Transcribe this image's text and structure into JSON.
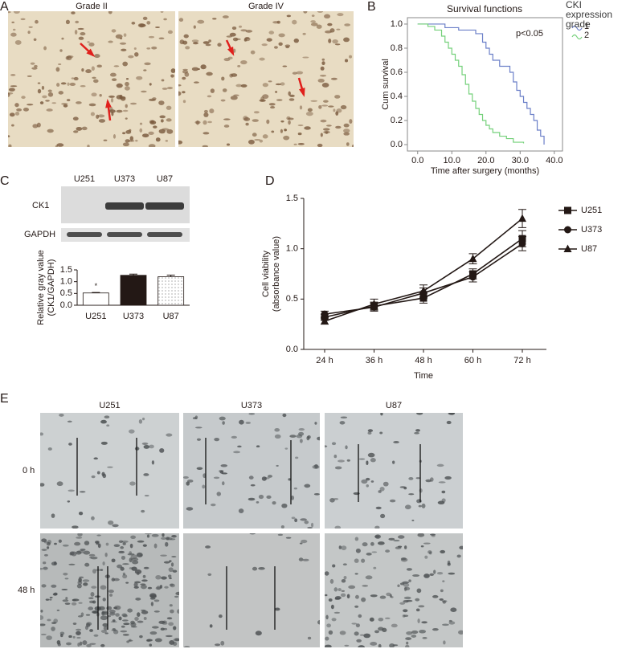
{
  "figure": {
    "A": {
      "letter": "A",
      "labels": [
        "Grade II",
        "Grade IV"
      ]
    },
    "blot": {
      "lanes": [
        "U251",
        "U373",
        "U87"
      ],
      "rows": [
        "CK1",
        "GAPDH"
      ]
    },
    "E": {
      "letter": "E",
      "columns": [
        "U251",
        "U373",
        "U87"
      ],
      "rows": [
        "0 h",
        "48 h"
      ]
    }
  },
  "chart_data": [
    {
      "type": "step",
      "panel": "B",
      "title": "Survival functions",
      "annotation": "p<0.05",
      "x_label": "Time after surgery (months)",
      "y_label": "Cum survival",
      "legend_title": "CKI expression grade",
      "legend": "right",
      "xlim": [
        -3,
        42.4
      ],
      "ylim": [
        -0.053,
        1.053
      ],
      "xticks": [
        {
          "value": 0,
          "label": "0.0"
        },
        {
          "value": 10,
          "label": "10.0"
        },
        {
          "value": 20,
          "label": "20.0"
        },
        {
          "value": 30,
          "label": "30.0"
        },
        {
          "value": 40,
          "label": "40.0"
        }
      ],
      "yticks": [
        {
          "value": 0,
          "label": "0.0"
        },
        0.2,
        0.4,
        0.6,
        0.8,
        {
          "value": 1,
          "label": "1.0"
        }
      ],
      "series": [
        {
          "name": "1",
          "color": "#6b7fc8",
          "x": [
            0,
            8,
            12,
            17,
            19,
            20,
            21,
            22,
            24,
            26,
            27,
            28,
            29,
            30,
            31,
            32,
            33,
            34,
            35,
            36,
            37
          ],
          "values": [
            1,
            0.97,
            0.95,
            0.92,
            0.85,
            0.8,
            0.75,
            0.7,
            0.65,
            0.65,
            0.6,
            0.52,
            0.45,
            0.4,
            0.35,
            0.3,
            0.25,
            0.2,
            0.12,
            0.07,
            0
          ]
        },
        {
          "name": "2",
          "color": "#74d07a",
          "x": [
            0,
            3,
            5,
            7,
            8,
            9,
            10,
            11,
            12,
            13,
            14,
            15,
            16,
            17,
            18,
            19,
            20,
            21,
            22,
            24,
            26,
            28,
            31
          ],
          "values": [
            1,
            0.98,
            0.95,
            0.9,
            0.85,
            0.8,
            0.75,
            0.7,
            0.65,
            0.58,
            0.5,
            0.42,
            0.36,
            0.3,
            0.25,
            0.2,
            0.16,
            0.13,
            0.1,
            0.07,
            0.05,
            0.02,
            0.01
          ]
        }
      ]
    },
    {
      "type": "bar",
      "panel": "C",
      "y_label": "Relative gray value (CK1/GAPDH)",
      "annotation": "*",
      "categories": [
        "U251",
        "U373",
        "U87"
      ],
      "values": [
        0.52,
        1.27,
        1.21
      ],
      "errors": [
        0.02,
        0.05,
        0.07
      ],
      "colors": [
        "#ffffff",
        "#231815",
        "#f2f2f2"
      ],
      "dotted": [
        false,
        false,
        true
      ],
      "ylim": [
        0,
        1.5
      ],
      "yticks": [
        {
          "value": 0,
          "label": "0.0"
        },
        0.5,
        {
          "value": 1,
          "label": "1.0"
        },
        1.5
      ]
    },
    {
      "type": "line",
      "panel": "D",
      "x_label": "Time",
      "y_label": "Cell viability (absorbance value)",
      "legend": "right",
      "categories": [
        "24 h",
        "36 h",
        "48 h",
        "60 h",
        "72 h"
      ],
      "ylim": [
        0,
        1.5
      ],
      "yticks": [
        {
          "value": 0,
          "label": "0.0"
        },
        0.5,
        {
          "value": 1,
          "label": "1.0"
        },
        1.5
      ],
      "series": [
        {
          "name": "U251",
          "color": "#231815",
          "marker": "square",
          "values": [
            0.32,
            0.43,
            0.51,
            0.75,
            1.1
          ],
          "errors": [
            0.03,
            0.04,
            0.05,
            0.05,
            0.08
          ]
        },
        {
          "name": "U373",
          "color": "#231815",
          "marker": "circle",
          "values": [
            0.35,
            0.42,
            0.56,
            0.72,
            1.05
          ],
          "errors": [
            0.03,
            0.04,
            0.05,
            0.05,
            0.07
          ]
        },
        {
          "name": "U87",
          "color": "#231815",
          "marker": "triangle",
          "values": [
            0.28,
            0.45,
            0.58,
            0.9,
            1.3
          ],
          "errors": [
            0.03,
            0.05,
            0.06,
            0.05,
            0.09
          ]
        }
      ]
    }
  ]
}
